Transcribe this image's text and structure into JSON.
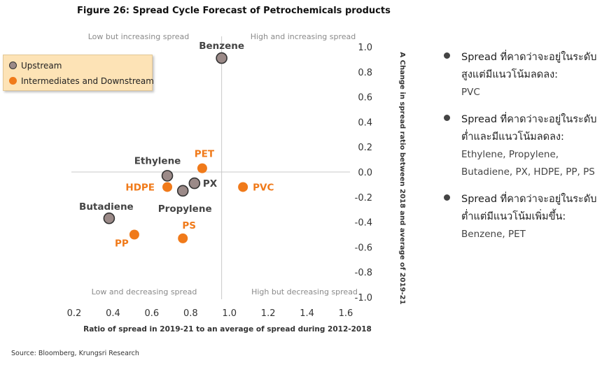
{
  "chart_data": {
    "type": "scatter",
    "title": "Figure 26: Spread Cycle Forecast of Petrochemicals products",
    "xlabel": "Ratio of spread in 2019-21 to an average of spread during 2012-2018",
    "ylabel": "A Change in spread ratio between 2018 and average of 2019-21",
    "xlim": [
      0.2,
      1.6
    ],
    "ylim": [
      -1.0,
      1.0
    ],
    "x_ticks": [
      "0.2",
      "0.4",
      "0.6",
      "0.8",
      "1.0",
      "1.2",
      "1.4",
      "1.6"
    ],
    "y_ticks": [
      "1.0",
      "0.8",
      "0.6",
      "0.4",
      "0.2",
      "0.0",
      "-0.2",
      "-0.4",
      "-0.6",
      "-0.8",
      "-1.0"
    ],
    "divider_x": 0.96,
    "divider_y": 0.0,
    "grid": false,
    "legend_position": "top-left",
    "quadrant_labels": {
      "top_left": "Low but increasing spread",
      "top_right": "High and increasing spread",
      "bottom_left": "Low and decreasing spread",
      "bottom_right": "High but decreasing spread"
    },
    "series": [
      {
        "name": "Upstream",
        "color": "#9b8a88",
        "points": [
          {
            "label": "Benzene",
            "x": 0.96,
            "y": 0.91
          },
          {
            "label": "Ethylene",
            "x": 0.68,
            "y": -0.03
          },
          {
            "label": "PX",
            "x": 0.82,
            "y": -0.09
          },
          {
            "label": "Propylene",
            "x": 0.76,
            "y": -0.15
          },
          {
            "label": "Butadiene",
            "x": 0.38,
            "y": -0.37
          }
        ]
      },
      {
        "name": "Intermediates and Downstream",
        "color": "#f07a1a",
        "points": [
          {
            "label": "PET",
            "x": 0.86,
            "y": 0.03
          },
          {
            "label": "HDPE",
            "x": 0.68,
            "y": -0.12
          },
          {
            "label": "PVC",
            "x": 1.07,
            "y": -0.12
          },
          {
            "label": "PS",
            "x": 0.76,
            "y": -0.53
          },
          {
            "label": "PP",
            "x": 0.51,
            "y": -0.5
          }
        ]
      }
    ]
  },
  "notes": [
    {
      "head": "Spread ที่คาดว่าจะอยู่ในระดับสูงแต่มีแนวโน้มลดลง:",
      "items": "PVC"
    },
    {
      "head": "Spread ที่คาดว่าจะอยู่ในระดับต่ำและมีแนวโน้มลดลง:",
      "items": "Ethylene, Propylene, Butadiene, PX, HDPE, PP, PS"
    },
    {
      "head": "Spread ที่คาดว่าจะอยู่ในระดับต่ำแต่มีแนวโน้มเพิ่มขึ้น:",
      "items": "Benzene, PET"
    }
  ],
  "source": "Source: Bloomberg, Krungsri Research"
}
